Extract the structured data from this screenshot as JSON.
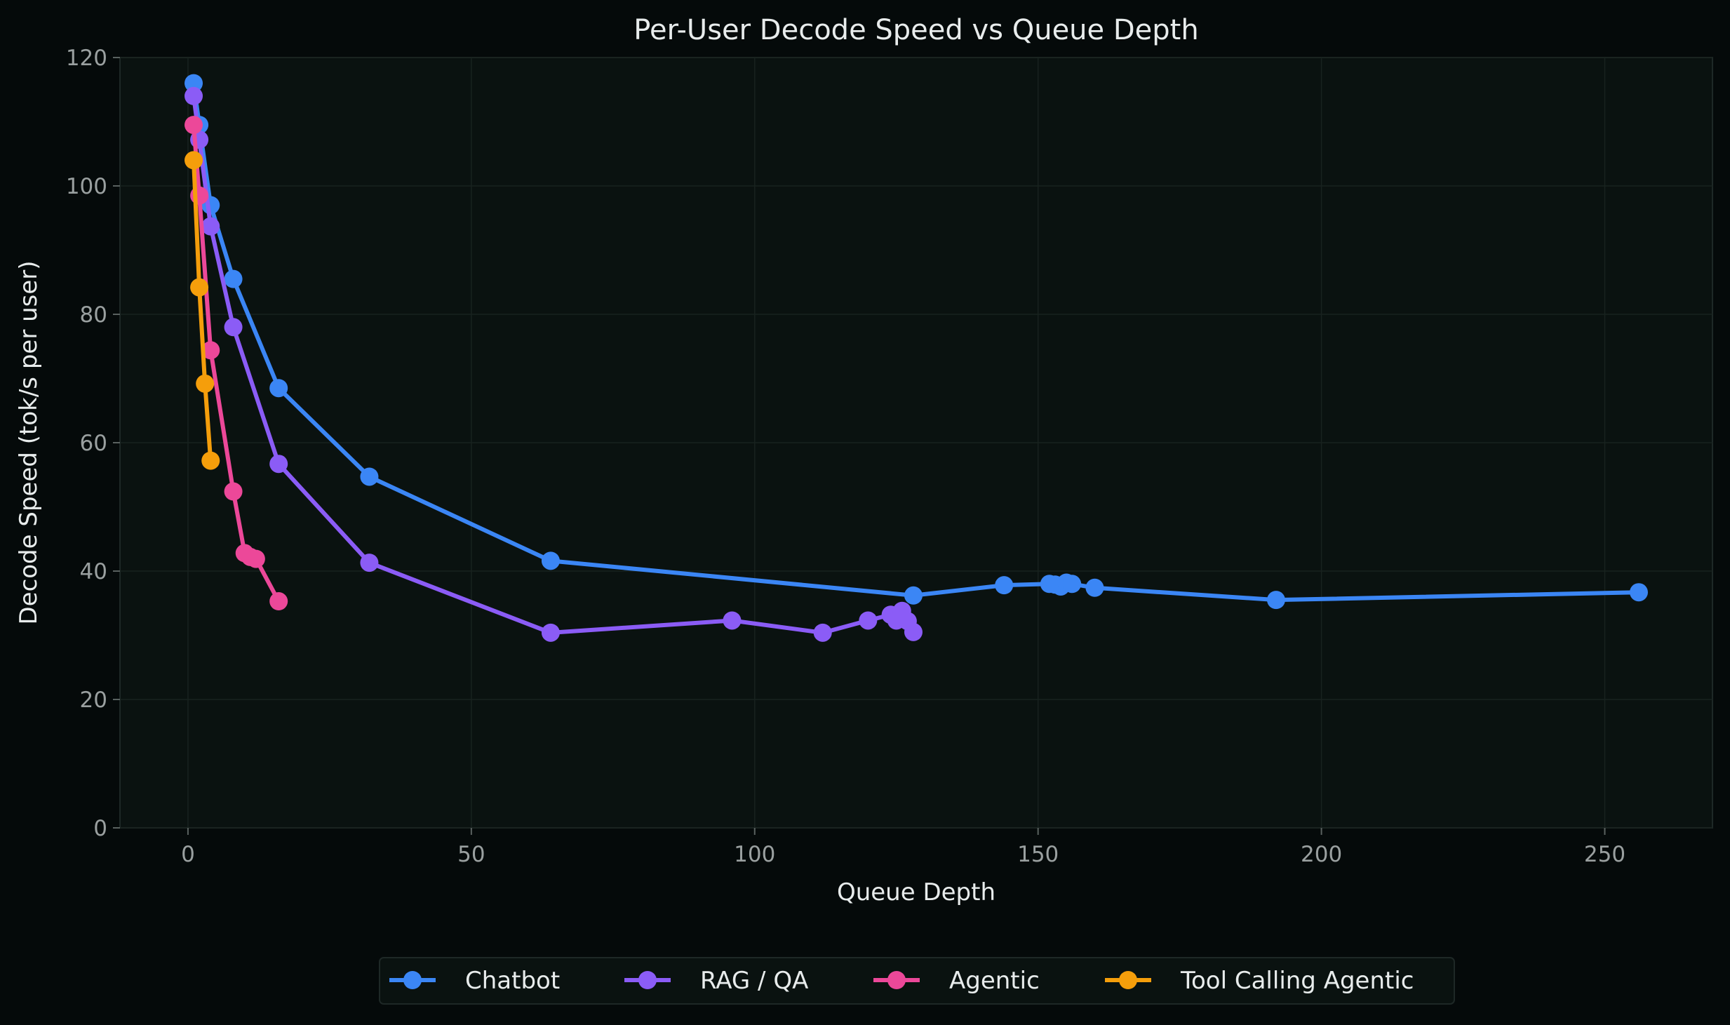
{
  "chart_data": {
    "type": "line",
    "title": "Per-User Decode Speed vs Queue Depth",
    "xlabel": "Queue Depth",
    "ylabel": "Decode Speed (tok/s per user)",
    "xlim": [
      -12,
      269
    ],
    "ylim": [
      0,
      120
    ],
    "xticks": [
      0,
      50,
      100,
      150,
      200,
      250
    ],
    "yticks": [
      0,
      20,
      40,
      60,
      80,
      100,
      120
    ],
    "grid": true,
    "legend_placement": "bottom-center",
    "colors": {
      "background": "#050a0a",
      "plot_background": "#0a1210",
      "text": "#e8ecec",
      "tick_text": "#9aa0a0"
    },
    "series": [
      {
        "name": "Chatbot",
        "color": "#3b86f5",
        "x": [
          1,
          2,
          4,
          8,
          16,
          32,
          64,
          128,
          144,
          152,
          153,
          154,
          155,
          156,
          160,
          192,
          256
        ],
        "y": [
          116,
          109.5,
          97,
          85.5,
          68.5,
          54.7,
          41.6,
          36.2,
          37.8,
          38,
          37.9,
          37.6,
          38.2,
          38,
          37.4,
          35.5,
          36.7
        ]
      },
      {
        "name": "RAG / QA",
        "color": "#8b5cf6",
        "x": [
          1,
          2,
          4,
          8,
          16,
          32,
          64,
          96,
          112,
          120,
          124,
          125,
          126,
          127,
          128
        ],
        "y": [
          114,
          107.2,
          93.7,
          78,
          56.7,
          41.3,
          30.4,
          32.3,
          30.4,
          32.3,
          33.2,
          32.3,
          33.8,
          32.2,
          30.5
        ]
      },
      {
        "name": "Agentic",
        "color": "#ec4899",
        "x": [
          1,
          2,
          4,
          8,
          10,
          11,
          12,
          16
        ],
        "y": [
          109.5,
          98.5,
          74.4,
          52.4,
          42.8,
          42.2,
          41.9,
          35.3
        ]
      },
      {
        "name": "Tool Calling Agentic",
        "color": "#f59e0b",
        "x": [
          1,
          2,
          3,
          4
        ],
        "y": [
          104,
          84.2,
          69.2,
          57.2
        ]
      }
    ]
  }
}
